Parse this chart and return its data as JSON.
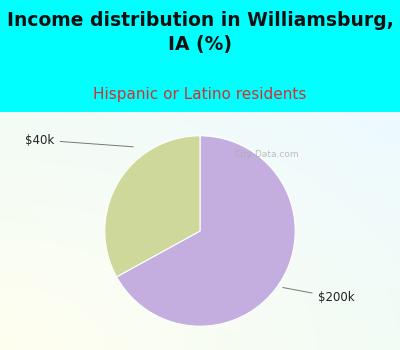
{
  "title": "Income distribution in Williamsburg,\nIA (%)",
  "subtitle": "Hispanic or Latino residents",
  "slices": [
    {
      "label": "$200k",
      "value": 67,
      "color": "#C4AEE0"
    },
    {
      "label": "$40k",
      "value": 33,
      "color": "#CDD89A"
    }
  ],
  "title_fontsize": 13.5,
  "subtitle_fontsize": 11,
  "subtitle_color": "#cc3333",
  "title_color": "#111111",
  "bg_color": "#00FFFF",
  "watermark": "City-Data.com",
  "startangle": 90
}
